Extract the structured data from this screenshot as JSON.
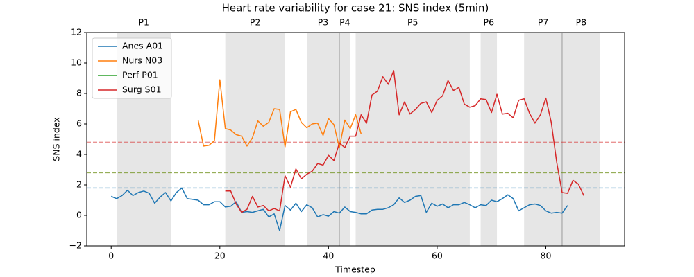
{
  "chart_data": {
    "type": "line",
    "title": "Heart rate variability for case 21: SNS index (5min)",
    "xlabel": "Timestep",
    "ylabel": "SNS index",
    "xlim": [
      -4.5,
      94.5
    ],
    "xticks": [
      0,
      20,
      40,
      60,
      80
    ],
    "ylim": [
      -2,
      12
    ],
    "yticks": [
      {
        "value": -2,
        "label": "−2"
      },
      0,
      2,
      4,
      6,
      8,
      10,
      12
    ],
    "legend": "upper left",
    "phases": [
      {
        "label": "P1",
        "start": 1,
        "end": 11
      },
      {
        "label": "P2",
        "start": 21,
        "end": 32
      },
      {
        "label": "P3",
        "start": 36,
        "end": 42
      },
      {
        "label": "P4",
        "start": 42,
        "end": 44
      },
      {
        "label": "P5",
        "start": 45,
        "end": 66
      },
      {
        "label": "P6",
        "start": 68,
        "end": 71
      },
      {
        "label": "P7",
        "start": 76,
        "end": 83
      },
      {
        "label": "P8",
        "start": 83,
        "end": 90
      }
    ],
    "x": [
      0,
      1,
      2,
      3,
      4,
      5,
      6,
      7,
      8,
      9,
      10,
      11,
      12,
      13,
      14,
      15,
      16,
      17,
      18,
      19,
      20,
      21,
      22,
      23,
      24,
      25,
      26,
      27,
      28,
      29,
      30,
      31,
      32,
      33,
      34,
      35,
      36,
      37,
      38,
      39,
      40,
      41,
      42,
      43,
      44,
      45,
      46,
      47,
      48,
      49,
      50,
      51,
      52,
      53,
      54,
      55,
      56,
      57,
      58,
      59,
      60,
      61,
      62,
      63,
      64,
      65,
      66,
      67,
      68,
      69,
      70,
      71,
      72,
      73,
      74,
      75,
      76,
      77,
      78,
      79,
      80,
      81,
      82,
      83,
      84,
      85,
      86,
      87
    ],
    "series": [
      {
        "name": "Anes A01",
        "color": "#1f77b4",
        "threshold": 1.8,
        "values": [
          1.25,
          1.1,
          1.3,
          1.65,
          1.3,
          1.5,
          1.6,
          1.45,
          0.8,
          1.2,
          1.5,
          0.95,
          1.5,
          1.8,
          1.1,
          1.05,
          1.0,
          0.7,
          0.7,
          0.9,
          0.9,
          0.55,
          0.6,
          0.9,
          0.2,
          0.25,
          0.2,
          0.3,
          0.4,
          -0.1,
          0.1,
          -1.0,
          0.65,
          0.35,
          0.8,
          0.25,
          0.7,
          0.5,
          -0.1,
          0.05,
          -0.05,
          0.25,
          0.15,
          0.55,
          0.25,
          0.2,
          0.1,
          0.1,
          0.35,
          0.4,
          0.4,
          0.5,
          0.7,
          1.15,
          0.85,
          1.0,
          1.25,
          1.3,
          0.2,
          0.8,
          0.6,
          0.75,
          0.5,
          0.7,
          0.7,
          0.85,
          0.7,
          0.5,
          0.7,
          0.65,
          1.0,
          0.9,
          1.1,
          1.35,
          1.1,
          0.3,
          0.5,
          0.7,
          0.75,
          0.65,
          0.3,
          0.15,
          0.2,
          0.15,
          0.65,
          null,
          null,
          null
        ]
      },
      {
        "name": "Nurs N03",
        "color": "#ff7f0e",
        "threshold": 2.8,
        "values": [
          null,
          null,
          null,
          null,
          null,
          null,
          null,
          null,
          null,
          null,
          null,
          null,
          null,
          null,
          null,
          null,
          6.25,
          4.55,
          4.6,
          4.9,
          8.9,
          5.7,
          5.6,
          5.3,
          5.2,
          4.55,
          5.1,
          6.2,
          5.85,
          6.1,
          7.0,
          6.95,
          4.5,
          6.8,
          6.95,
          6.1,
          5.75,
          6.0,
          6.05,
          5.25,
          6.35,
          5.95,
          4.45,
          6.25,
          5.7,
          6.6,
          5.35,
          null,
          null,
          null,
          null,
          null,
          null,
          null,
          null,
          null,
          null,
          null,
          null,
          null,
          null,
          null,
          null,
          null,
          null,
          null,
          null,
          null,
          null,
          null,
          null,
          null,
          null,
          null,
          null,
          null,
          null,
          null,
          null,
          null,
          null,
          null,
          null,
          null,
          null,
          null,
          null,
          null
        ]
      },
      {
        "name": "Perf P01",
        "color": "#2ca02c",
        "threshold": 2.8,
        "values": [
          null,
          null,
          null,
          null,
          null,
          null,
          null,
          null,
          null,
          null,
          null,
          null,
          null,
          null,
          null,
          null,
          null,
          null,
          null,
          null,
          null,
          null,
          null,
          null,
          null,
          null,
          null,
          null,
          null,
          null,
          null,
          null,
          null,
          null,
          null,
          null,
          null,
          null,
          null,
          null,
          null,
          null,
          null,
          null,
          null,
          null,
          null,
          null,
          null,
          null,
          null,
          null,
          null,
          null,
          null,
          null,
          null,
          null,
          null,
          null,
          null,
          null,
          null,
          null,
          null,
          null,
          null,
          null,
          null,
          null,
          null,
          null,
          null,
          null,
          null,
          null,
          null,
          null,
          null,
          null,
          null,
          null,
          null,
          null,
          null,
          null,
          null,
          null
        ]
      },
      {
        "name": "Surg S01",
        "color": "#d62728",
        "threshold": 4.8,
        "values": [
          null,
          null,
          null,
          null,
          null,
          null,
          null,
          null,
          null,
          null,
          null,
          null,
          null,
          null,
          null,
          null,
          null,
          null,
          null,
          null,
          null,
          1.6,
          1.6,
          0.75,
          0.2,
          0.4,
          1.25,
          0.55,
          0.65,
          0.3,
          0.45,
          0.3,
          2.6,
          1.85,
          3.05,
          2.4,
          2.7,
          2.9,
          3.4,
          3.3,
          3.95,
          3.6,
          4.75,
          4.45,
          5.2,
          5.2,
          6.6,
          6.05,
          7.9,
          8.15,
          9.1,
          8.6,
          9.5,
          6.6,
          7.45,
          6.65,
          6.95,
          7.35,
          7.45,
          6.75,
          7.55,
          7.85,
          8.85,
          8.2,
          8.4,
          7.3,
          7.1,
          7.2,
          7.65,
          7.6,
          6.75,
          7.95,
          6.65,
          6.7,
          6.4,
          7.55,
          7.65,
          6.7,
          6.05,
          6.6,
          7.7,
          6.1,
          3.5,
          1.5,
          1.45,
          2.3,
          2.05,
          1.3
        ]
      }
    ]
  }
}
